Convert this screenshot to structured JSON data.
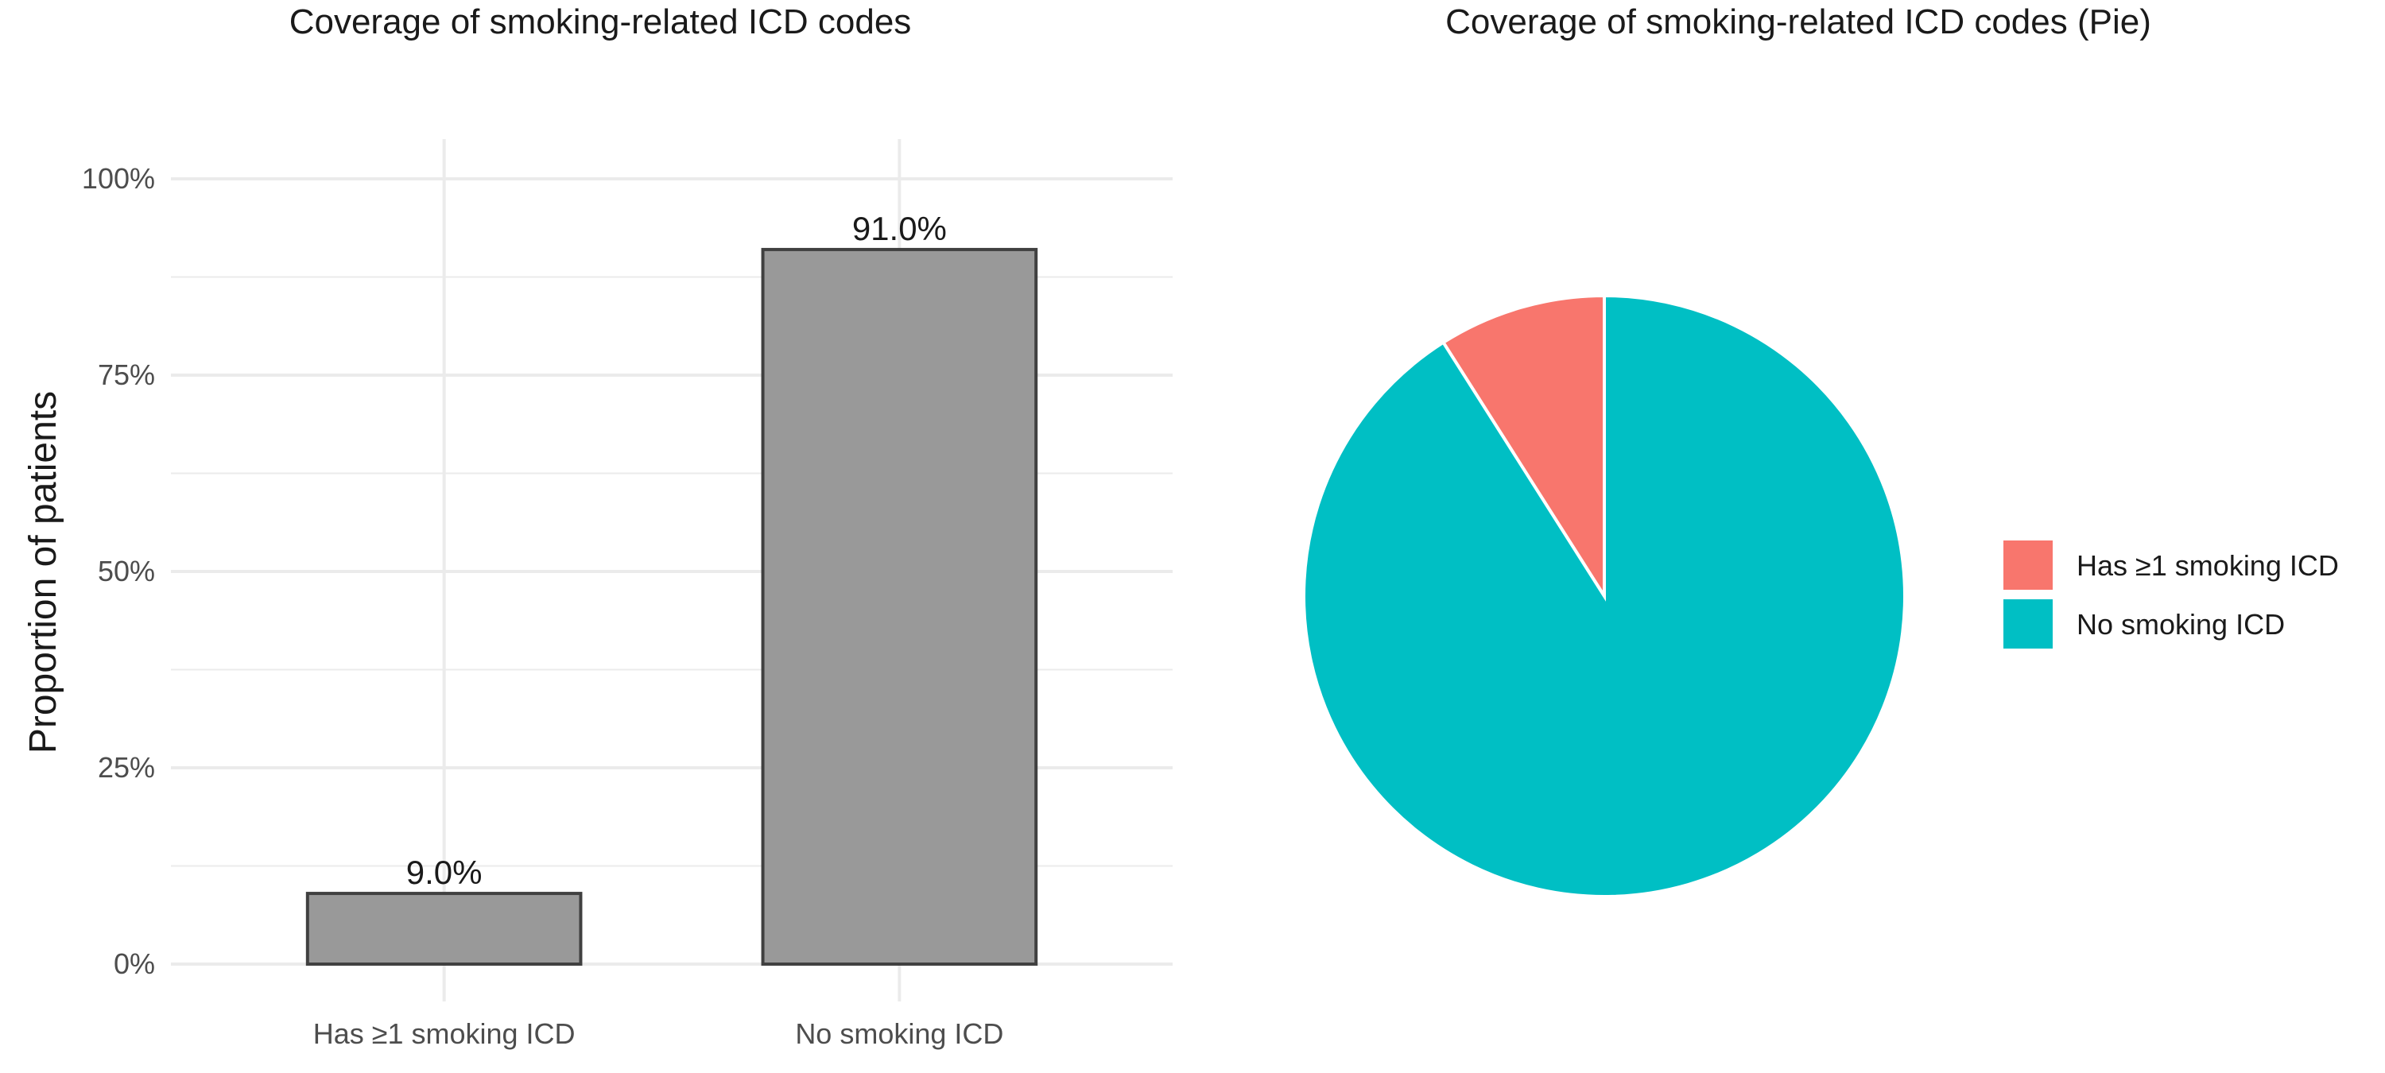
{
  "chart_data": [
    {
      "type": "bar",
      "title": "Coverage of smoking-related ICD codes",
      "ylabel": "Proportion of patients",
      "xlabel": "",
      "categories": [
        "Has ≥1 smoking ICD",
        "No smoking ICD"
      ],
      "values": [
        0.09,
        0.91
      ],
      "value_labels": [
        "9.0%",
        "91.0%"
      ],
      "ylim": [
        0,
        1
      ],
      "y_ticks": [
        0,
        0.25,
        0.5,
        0.75,
        1.0
      ],
      "y_tick_labels": [
        "0%",
        "25%",
        "50%",
        "75%",
        "100%"
      ],
      "grid": true,
      "bar_color": "#999999",
      "bar_border_color": "#404040",
      "gridline_color": "#ebebeb"
    },
    {
      "type": "pie",
      "title": "Coverage of smoking-related ICD codes (Pie)",
      "labels": [
        "Has ≥1 smoking ICD",
        "No smoking ICD"
      ],
      "values": [
        0.09,
        0.91
      ],
      "colors": [
        "#F8766D",
        "#00BFC4"
      ],
      "legend_position": "right"
    }
  ]
}
